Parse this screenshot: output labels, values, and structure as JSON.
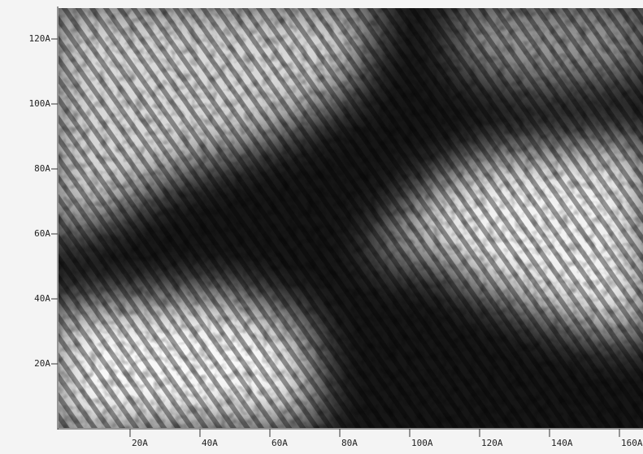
{
  "image": {
    "y_axis": {
      "ticks": [
        "120A",
        "100A",
        "80A",
        "60A",
        "40A",
        "20A"
      ]
    },
    "x_axis": {
      "ticks": [
        "20A",
        "40A",
        "60A",
        "80A",
        "100A",
        "120A",
        "140A",
        "160A"
      ]
    }
  }
}
